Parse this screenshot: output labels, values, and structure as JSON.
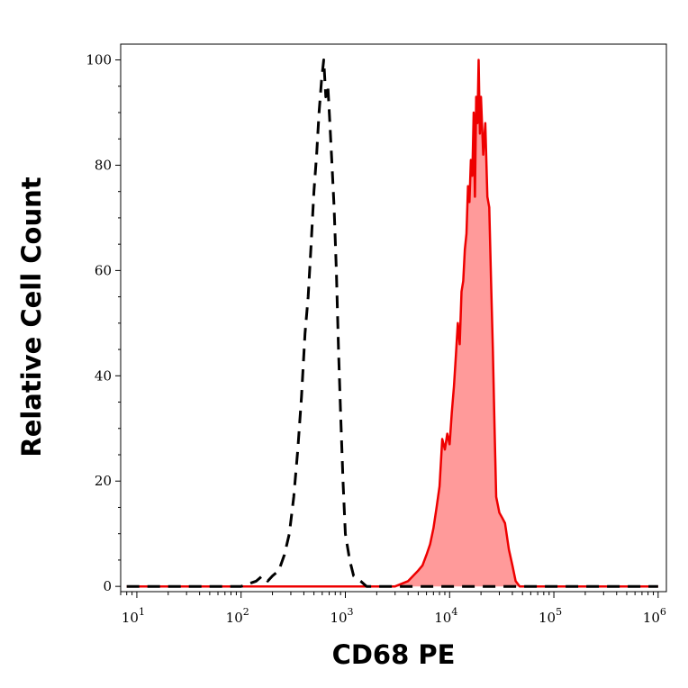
{
  "chart_data": {
    "type": "area",
    "xlabel": "CD68 PE",
    "ylabel": "Relative Cell Count",
    "x_scale": "log",
    "xlim": [
      7,
      1200000
    ],
    "ylim": [
      -1,
      103
    ],
    "x_ticks": [
      {
        "base": "10",
        "exp": "1",
        "value": 10
      },
      {
        "base": "10",
        "exp": "2",
        "value": 100
      },
      {
        "base": "10",
        "exp": "3",
        "value": 1000
      },
      {
        "base": "10",
        "exp": "4",
        "value": 10000
      },
      {
        "base": "10",
        "exp": "5",
        "value": 100000
      },
      {
        "base": "10",
        "exp": "6",
        "value": 1000000
      }
    ],
    "y_ticks": [
      {
        "label": "0",
        "value": 0
      },
      {
        "label": "20",
        "value": 20
      },
      {
        "label": "40",
        "value": 40
      },
      {
        "label": "60",
        "value": 60
      },
      {
        "label": "80",
        "value": 80
      },
      {
        "label": "100",
        "value": 100
      }
    ],
    "series": [
      {
        "style": "dashed",
        "color": "#000000",
        "fill": "none",
        "x": [
          8,
          100,
          140,
          160,
          180,
          200,
          230,
          260,
          290,
          320,
          350,
          380,
          410,
          440,
          470,
          500,
          530,
          560,
          590,
          620,
          650,
          680,
          710,
          740,
          780,
          820,
          860,
          900,
          950,
          1000,
          1100,
          1200,
          1400,
          1600,
          1800,
          1000000
        ],
        "y": [
          0,
          0,
          1,
          2,
          1,
          2,
          3,
          6,
          10,
          17,
          26,
          36,
          48,
          55,
          65,
          75,
          82,
          90,
          96,
          100,
          93,
          95,
          88,
          81,
          72,
          60,
          45,
          33,
          20,
          10,
          5,
          2,
          1,
          0,
          0,
          0
        ]
      },
      {
        "style": "solid",
        "color": "#ee0000",
        "fill": "#ff9a9a",
        "x": [
          8,
          3000,
          4000,
          5000,
          5500,
          6000,
          6500,
          7000,
          7500,
          8000,
          8500,
          9000,
          9500,
          10000,
          10500,
          11000,
          11500,
          12000,
          12500,
          13000,
          13500,
          14000,
          14500,
          15000,
          15500,
          16000,
          16500,
          17000,
          17500,
          18000,
          18500,
          19000,
          19500,
          20000,
          21000,
          22000,
          23000,
          24000,
          25000,
          26000,
          27000,
          28000,
          30000,
          32000,
          34000,
          37000,
          40000,
          43000,
          47000,
          1000000
        ],
        "y": [
          0,
          0,
          1,
          3,
          4,
          6,
          8,
          11,
          15,
          19,
          28,
          26,
          29,
          27,
          33,
          38,
          44,
          50,
          46,
          56,
          58,
          64,
          67,
          76,
          73,
          81,
          78,
          90,
          74,
          93,
          88,
          100,
          86,
          93,
          82,
          88,
          74,
          72,
          58,
          45,
          30,
          17,
          14,
          13,
          12,
          7,
          4,
          1,
          0,
          0
        ]
      }
    ]
  }
}
